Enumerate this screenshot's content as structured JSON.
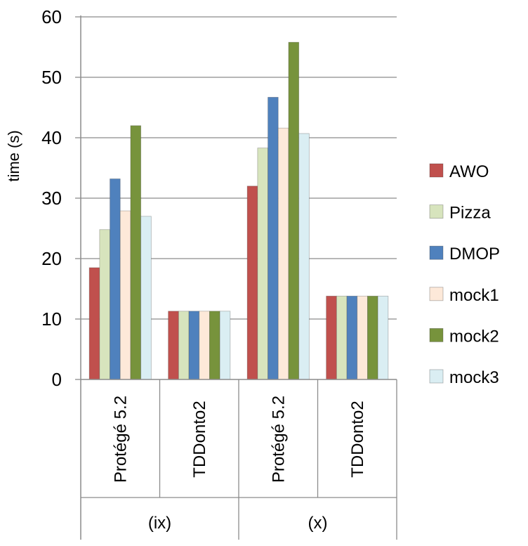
{
  "chart_data": {
    "type": "bar",
    "title": "",
    "xlabel": "",
    "ylabel": "time (s)",
    "ylim": [
      0,
      60
    ],
    "yticks": [
      0,
      10,
      20,
      30,
      40,
      50,
      60
    ],
    "grid": true,
    "legend_position": "right",
    "groups": [
      {
        "label": "(ix)",
        "categories": [
          "Protégé 5.2",
          "TDDonto2"
        ]
      },
      {
        "label": "(x)",
        "categories": [
          "Protégé 5.2",
          "TDDonto2"
        ]
      }
    ],
    "categories": [
      "Protégé 5.2",
      "TDDonto2",
      "Protégé 5.2",
      "TDDonto2"
    ],
    "series": [
      {
        "name": "AWO",
        "color": "#c0504d",
        "values": [
          18.5,
          11.3,
          32.0,
          13.8
        ]
      },
      {
        "name": "Pizza",
        "color": "#d7e4bd",
        "values": [
          24.8,
          11.3,
          38.3,
          13.8
        ]
      },
      {
        "name": "DMOP",
        "color": "#4f81bd",
        "values": [
          33.2,
          11.3,
          46.7,
          13.8
        ]
      },
      {
        "name": "mock1",
        "color": "#fde9d9",
        "values": [
          27.9,
          11.3,
          41.6,
          13.8
        ]
      },
      {
        "name": "mock2",
        "color": "#77933c",
        "values": [
          42.0,
          11.3,
          55.8,
          13.8
        ]
      },
      {
        "name": "mock3",
        "color": "#daeef3",
        "values": [
          27.0,
          11.3,
          40.7,
          13.8
        ]
      }
    ]
  }
}
